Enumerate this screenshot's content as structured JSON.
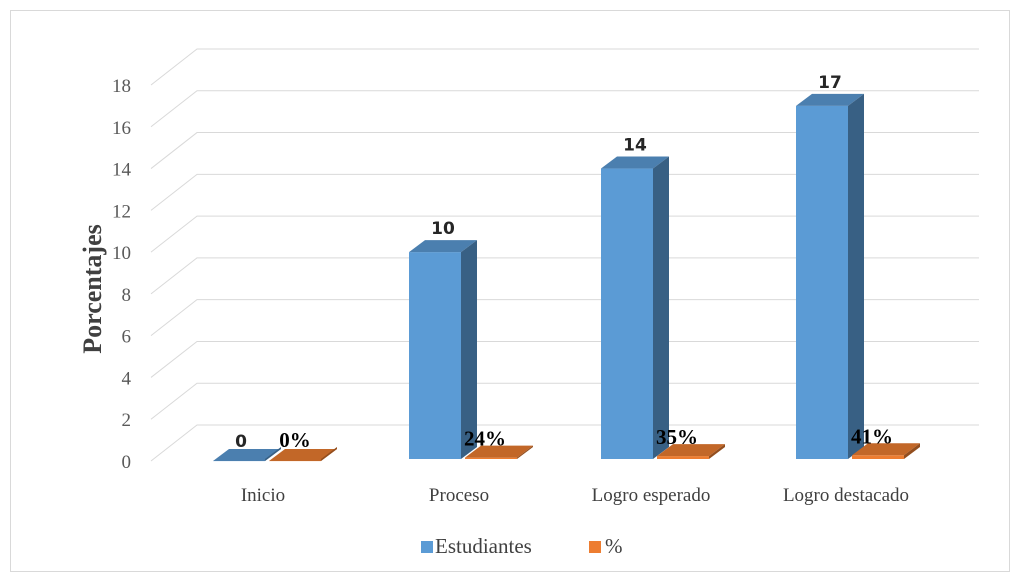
{
  "chart_data": {
    "type": "bar",
    "categories": [
      "Inicio",
      "Proceso",
      "Logro esperado",
      "Logro destacado"
    ],
    "series": [
      {
        "name": "Estudiantes",
        "values": [
          0,
          10,
          14,
          17
        ],
        "labels": [
          "0",
          "10",
          "14",
          "17"
        ],
        "color": "#5b9bd5"
      },
      {
        "name": "%",
        "values": [
          0,
          0.24,
          0.35,
          0.41
        ],
        "labels": [
          "0%",
          "24%",
          "35%",
          "41%"
        ],
        "color": "#ed7d31"
      }
    ],
    "ylabel": "Porcentajes",
    "ylim": [
      0,
      18
    ],
    "yticks": [
      "0",
      "2",
      "4",
      "6",
      "8",
      "10",
      "12",
      "14",
      "16",
      "18"
    ],
    "grid": true,
    "legend": "bottom",
    "style": "3d-column"
  }
}
